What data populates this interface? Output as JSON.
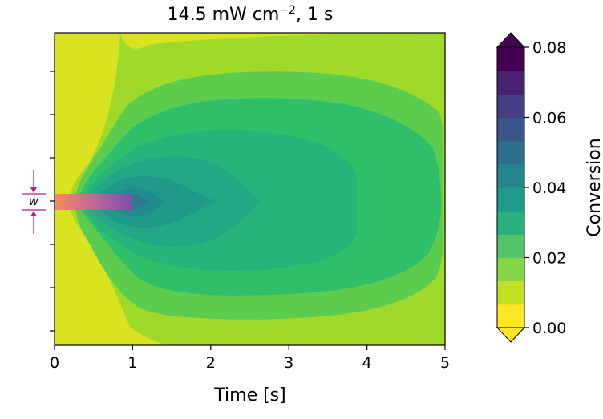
{
  "chart_data": {
    "type": "contourf",
    "title": "14.5 mW cm$^{-2}$, 1 s",
    "title_main": "14.5 mW cm",
    "title_sup": "−2",
    "title_tail": ", 1 s",
    "xlabel": "Time [s]",
    "xlim": [
      0,
      5
    ],
    "xticks": [
      0,
      1,
      2,
      3,
      4,
      5
    ],
    "xtick_labels": [
      "0",
      "1",
      "2",
      "3",
      "4",
      "5"
    ],
    "ylabel": "",
    "y_tick_count": 7,
    "grid": false,
    "colorbar": {
      "label": "Conversion",
      "ticks": [
        0.0,
        0.02,
        0.04,
        0.06,
        0.08
      ],
      "tick_labels": [
        "0.00",
        "0.02",
        "0.04",
        "0.06",
        "0.08"
      ],
      "levels": [
        0.0,
        0.005,
        0.01,
        0.015,
        0.02,
        0.025,
        0.03,
        0.035,
        0.04,
        0.045,
        0.05,
        0.055,
        0.06,
        0.065,
        0.07,
        0.075,
        0.08
      ],
      "colors": [
        "#fde725",
        "#c2df23",
        "#86d549",
        "#52c569",
        "#2ab07f",
        "#1e9b8a",
        "#25858e",
        "#2d708e",
        "#38588c",
        "#433e85",
        "#482173",
        "#440154"
      ],
      "extend": "both",
      "under_color": "#fde725",
      "over_color": "#440154"
    },
    "contour_bands": [
      {
        "level": 0.0,
        "color": "#d9e31f",
        "note": "background yellow-lime"
      },
      {
        "level": 0.005,
        "color": "#9fd92a"
      },
      {
        "level": 0.01,
        "color": "#5ccc4f"
      },
      {
        "level": 0.015,
        "color": "#2fbf6a"
      },
      {
        "level": 0.02,
        "color": "#27b47a"
      },
      {
        "level": 0.025,
        "color": "#22a884"
      },
      {
        "level": 0.03,
        "color": "#1f9a8a"
      },
      {
        "level": 0.04,
        "color": "#238a8d"
      },
      {
        "level": 0.05,
        "color": "#2c7a8e"
      }
    ],
    "exposure_bar": {
      "t_start": 0,
      "t_end": 1,
      "gradient": [
        "#f68a5c",
        "#c06a96",
        "#7b4fa8"
      ]
    },
    "annotation": {
      "symbol": "w",
      "color": "#b0208a"
    }
  }
}
